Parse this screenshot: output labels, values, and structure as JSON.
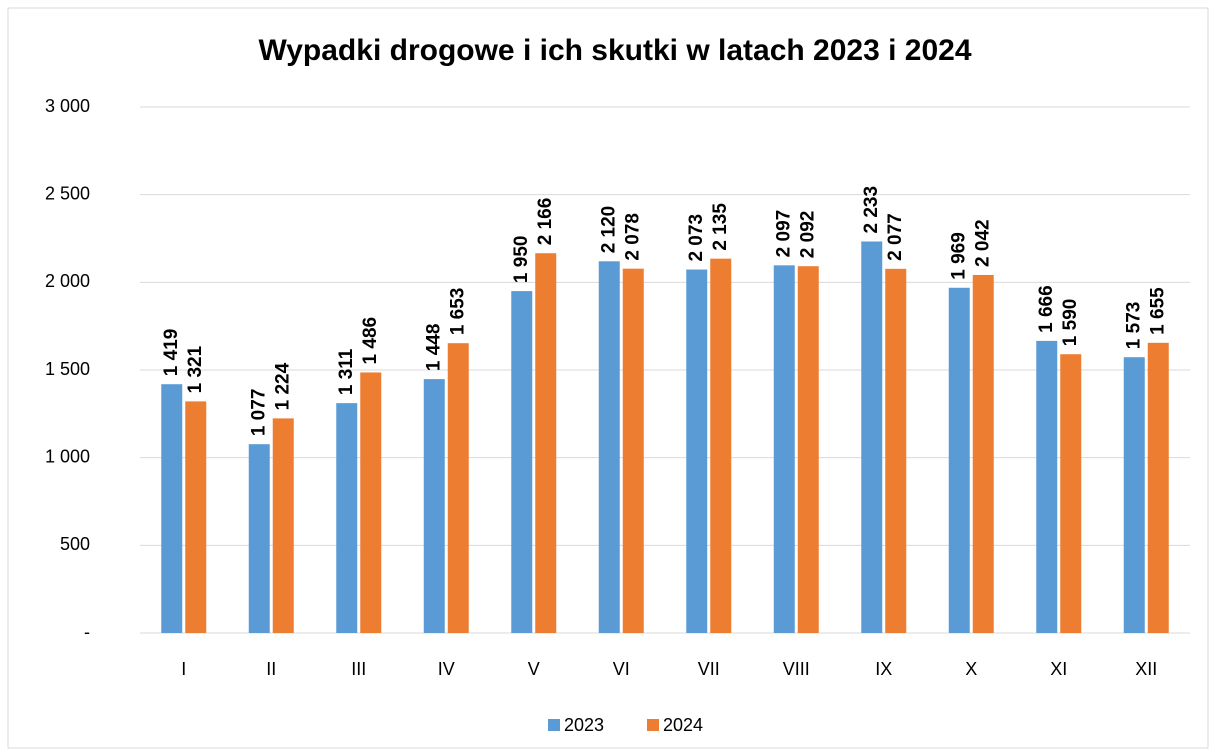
{
  "chart_data": {
    "type": "bar",
    "title": "Wypadki drogowe i ich skutki w latach 2023 i 2024",
    "categories": [
      "I",
      "II",
      "III",
      "IV",
      "V",
      "VI",
      "VII",
      "VIII",
      "IX",
      "X",
      "XI",
      "XII"
    ],
    "series": [
      {
        "name": "2023",
        "color": "#5b9bd5",
        "values": [
          1419,
          1077,
          1311,
          1448,
          1950,
          2120,
          2073,
          2097,
          2233,
          1969,
          1666,
          1573
        ],
        "value_labels": [
          "1 419",
          "1 077",
          "1 311",
          "1 448",
          "1 950",
          "2 120",
          "2 073",
          "2 097",
          "2 233",
          "1 969",
          "1 666",
          "1 573"
        ]
      },
      {
        "name": "2024",
        "color": "#ed7d31",
        "values": [
          1321,
          1224,
          1486,
          1653,
          2166,
          2078,
          2135,
          2092,
          2077,
          2042,
          1590,
          1655
        ],
        "value_labels": [
          "1 321",
          "1 224",
          "1 486",
          "1 653",
          "2 166",
          "2 078",
          "2 135",
          "2 092",
          "2 077",
          "2 042",
          "1 590",
          "1 655"
        ]
      }
    ],
    "ylim": [
      0,
      3000
    ],
    "yticks": [
      {
        "value": 0,
        "label": "-"
      },
      500,
      {
        "value": 1000,
        "label": "1 000"
      },
      {
        "value": 1500,
        "label": "1 500"
      },
      {
        "value": 2000,
        "label": "2 000"
      },
      {
        "value": 2500,
        "label": "2 500"
      },
      {
        "value": 3000,
        "label": "3 000"
      }
    ],
    "grid": true,
    "legend": "bottom"
  }
}
